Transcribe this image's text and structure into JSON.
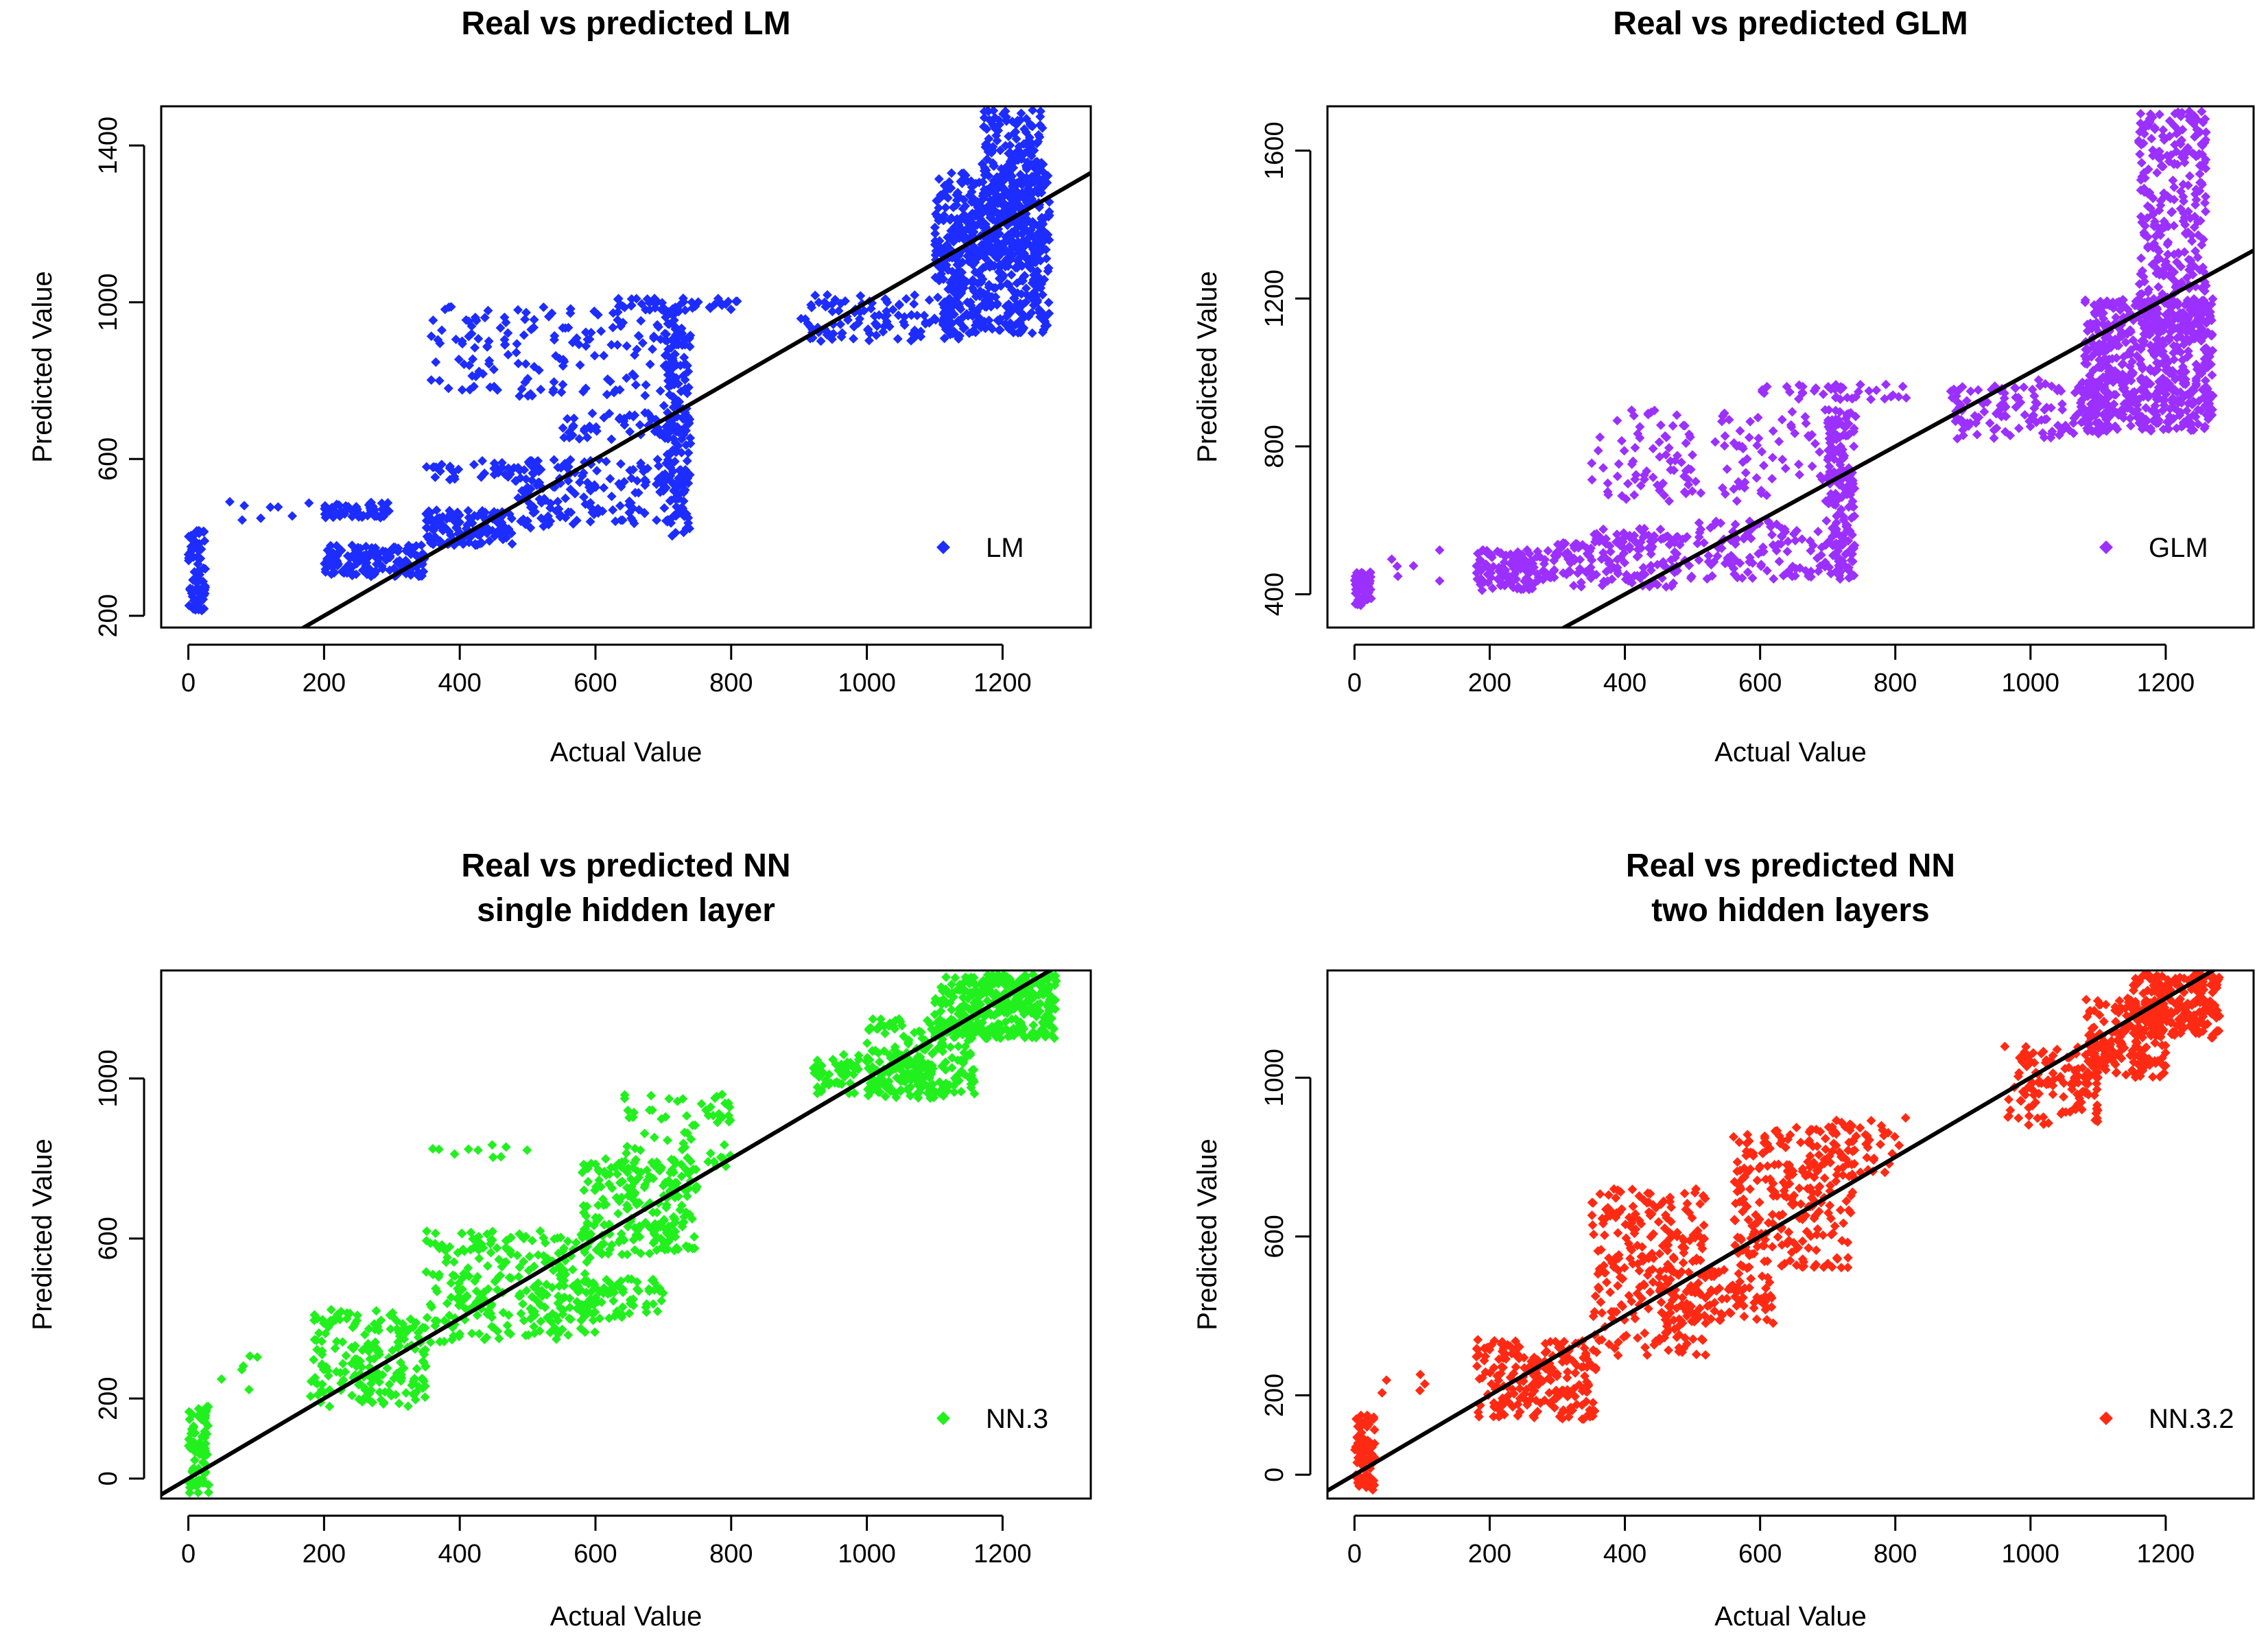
{
  "chart_data": [
    {
      "type": "scatter",
      "title": "Real vs predicted LM",
      "subtitle": "",
      "xlabel": "Actual Value",
      "ylabel": "Predicted Value",
      "xlim": [
        -40,
        1330
      ],
      "ylim": [
        170,
        1500
      ],
      "xticks": [
        0,
        200,
        400,
        600,
        800,
        1000,
        1200
      ],
      "yticks": [
        200,
        600,
        1000,
        1400
      ],
      "legend": {
        "label": "LM",
        "position": "bottom-right",
        "color": "#1d2cff"
      },
      "reference_line": {
        "slope": 1,
        "intercept": 0
      },
      "series": [
        {
          "name": "LM",
          "color": "#1d2cff",
          "clusters": [
            {
              "x": [
                0,
                25
              ],
              "y": [
                200,
                420
              ],
              "n": 80
            },
            {
              "x": [
                60,
                180
              ],
              "y": [
                440,
                500
              ],
              "n": 8
            },
            {
              "x": [
                200,
                350
              ],
              "y": [
                300,
                380
              ],
              "n": 160
            },
            {
              "x": [
                200,
                300
              ],
              "y": [
                450,
                490
              ],
              "n": 60
            },
            {
              "x": [
                350,
                480
              ],
              "y": [
                380,
                470
              ],
              "n": 140
            },
            {
              "x": [
                350,
                720
              ],
              "y": [
                760,
                990
              ],
              "n": 160
            },
            {
              "x": [
                350,
                520
              ],
              "y": [
                540,
                600
              ],
              "n": 50
            },
            {
              "x": [
                480,
                740
              ],
              "y": [
                420,
                600
              ],
              "n": 160
            },
            {
              "x": [
                550,
                740
              ],
              "y": [
                650,
                720
              ],
              "n": 60
            },
            {
              "x": [
                620,
                810
              ],
              "y": [
                980,
                1010
              ],
              "n": 40
            },
            {
              "x": [
                700,
                740
              ],
              "y": [
                400,
                980
              ],
              "n": 160
            },
            {
              "x": [
                900,
                1140
              ],
              "y": [
                900,
                1020
              ],
              "n": 120
            },
            {
              "x": [
                1100,
                1270
              ],
              "y": [
                920,
                1330
              ],
              "n": 600
            },
            {
              "x": [
                1170,
                1260
              ],
              "y": [
                1100,
                1490
              ],
              "n": 260
            }
          ]
        }
      ]
    },
    {
      "type": "scatter",
      "title": "Real vs predicted GLM",
      "subtitle": "",
      "xlabel": "Actual Value",
      "ylabel": "Predicted Value",
      "xlim": [
        -40,
        1330
      ],
      "ylim": [
        310,
        1720
      ],
      "xticks": [
        0,
        200,
        400,
        600,
        800,
        1000,
        1200
      ],
      "yticks": [
        400,
        800,
        1200,
        1600
      ],
      "legend": {
        "label": "GLM",
        "position": "bottom-right",
        "color": "#9b30ff"
      },
      "reference_line": {
        "slope": 1,
        "intercept": 0
      },
      "series": [
        {
          "name": "GLM",
          "color": "#9b30ff",
          "clusters": [
            {
              "x": [
                0,
                25
              ],
              "y": [
                370,
                460
              ],
              "n": 70
            },
            {
              "x": [
                50,
                140
              ],
              "y": [
                420,
                520
              ],
              "n": 6
            },
            {
              "x": [
                180,
                300
              ],
              "y": [
                410,
                520
              ],
              "n": 130
            },
            {
              "x": [
                300,
                480
              ],
              "y": [
                420,
                540
              ],
              "n": 120
            },
            {
              "x": [
                350,
                750
              ],
              "y": [
                650,
                900
              ],
              "n": 160
            },
            {
              "x": [
                350,
                480
              ],
              "y": [
                540,
                580
              ],
              "n": 40
            },
            {
              "x": [
                480,
                740
              ],
              "y": [
                440,
                600
              ],
              "n": 140
            },
            {
              "x": [
                600,
                820
              ],
              "y": [
                920,
                970
              ],
              "n": 40
            },
            {
              "x": [
                700,
                740
              ],
              "y": [
                440,
                900
              ],
              "n": 140
            },
            {
              "x": [
                880,
                1120
              ],
              "y": [
                820,
                980
              ],
              "n": 140
            },
            {
              "x": [
                1080,
                1270
              ],
              "y": [
                840,
                1200
              ],
              "n": 600
            },
            {
              "x": [
                1160,
                1260
              ],
              "y": [
                1100,
                1710
              ],
              "n": 320
            }
          ]
        }
      ]
    },
    {
      "type": "scatter",
      "title": "Real vs predicted NN",
      "subtitle": "single hidden layer",
      "xlabel": "Actual Value",
      "ylabel": "Predicted Value",
      "xlim": [
        -40,
        1330
      ],
      "ylim": [
        -50,
        1270
      ],
      "xticks": [
        0,
        200,
        400,
        600,
        800,
        1000,
        1200
      ],
      "yticks": [
        0,
        200,
        600,
        1000
      ],
      "legend": {
        "label": "NN.3",
        "position": "bottom-right",
        "color": "#22f01e"
      },
      "reference_line": {
        "slope": 1,
        "intercept": 0
      },
      "series": [
        {
          "name": "NN.3",
          "color": "#22f01e",
          "clusters": [
            {
              "x": [
                0,
                30
              ],
              "y": [
                -40,
                180
              ],
              "n": 90
            },
            {
              "x": [
                40,
                130
              ],
              "y": [
                200,
                330
              ],
              "n": 6
            },
            {
              "x": [
                180,
                350
              ],
              "y": [
                180,
                430
              ],
              "n": 200
            },
            {
              "x": [
                350,
                600
              ],
              "y": [
                340,
                620
              ],
              "n": 260
            },
            {
              "x": [
                360,
                500
              ],
              "y": [
                800,
                840
              ],
              "n": 10
            },
            {
              "x": [
                560,
                700
              ],
              "y": [
                400,
                500
              ],
              "n": 80
            },
            {
              "x": [
                580,
                750
              ],
              "y": [
                560,
                800
              ],
              "n": 240
            },
            {
              "x": [
                640,
                800
              ],
              "y": [
                780,
                960
              ],
              "n": 60
            },
            {
              "x": [
                920,
                1100
              ],
              "y": [
                960,
                1060
              ],
              "n": 120
            },
            {
              "x": [
                1000,
                1160
              ],
              "y": [
                950,
                1150
              ],
              "n": 180
            },
            {
              "x": [
                1100,
                1280
              ],
              "y": [
                1100,
                1260
              ],
              "n": 380
            }
          ]
        }
      ]
    },
    {
      "type": "scatter",
      "title": "Real vs predicted NN",
      "subtitle": "two hidden layers",
      "xlabel": "Actual Value",
      "ylabel": "Predicted Value",
      "xlim": [
        -40,
        1330
      ],
      "ylim": [
        -60,
        1270
      ],
      "xticks": [
        0,
        200,
        400,
        600,
        800,
        1000,
        1200
      ],
      "yticks": [
        0,
        200,
        600,
        1000
      ],
      "legend": {
        "label": "NN.3.2",
        "position": "bottom-right",
        "color": "#ff2a14"
      },
      "reference_line": {
        "slope": 1,
        "intercept": 0
      },
      "series": [
        {
          "name": "NN.3.2",
          "color": "#ff2a14",
          "clusters": [
            {
              "x": [
                0,
                30
              ],
              "y": [
                -40,
                150
              ],
              "n": 80
            },
            {
              "x": [
                40,
                120
              ],
              "y": [
                200,
                260
              ],
              "n": 5
            },
            {
              "x": [
                180,
                360
              ],
              "y": [
                140,
                340
              ],
              "n": 220
            },
            {
              "x": [
                350,
                520
              ],
              "y": [
                300,
                720
              ],
              "n": 240
            },
            {
              "x": [
                450,
                620
              ],
              "y": [
                380,
                520
              ],
              "n": 120
            },
            {
              "x": [
                560,
                740
              ],
              "y": [
                520,
                880
              ],
              "n": 260
            },
            {
              "x": [
                700,
                820
              ],
              "y": [
                760,
                900
              ],
              "n": 40
            },
            {
              "x": [
                960,
                1100
              ],
              "y": [
                880,
                1080
              ],
              "n": 120
            },
            {
              "x": [
                1080,
                1200
              ],
              "y": [
                1000,
                1200
              ],
              "n": 180
            },
            {
              "x": [
                1150,
                1280
              ],
              "y": [
                1100,
                1260
              ],
              "n": 260
            }
          ]
        }
      ]
    }
  ]
}
